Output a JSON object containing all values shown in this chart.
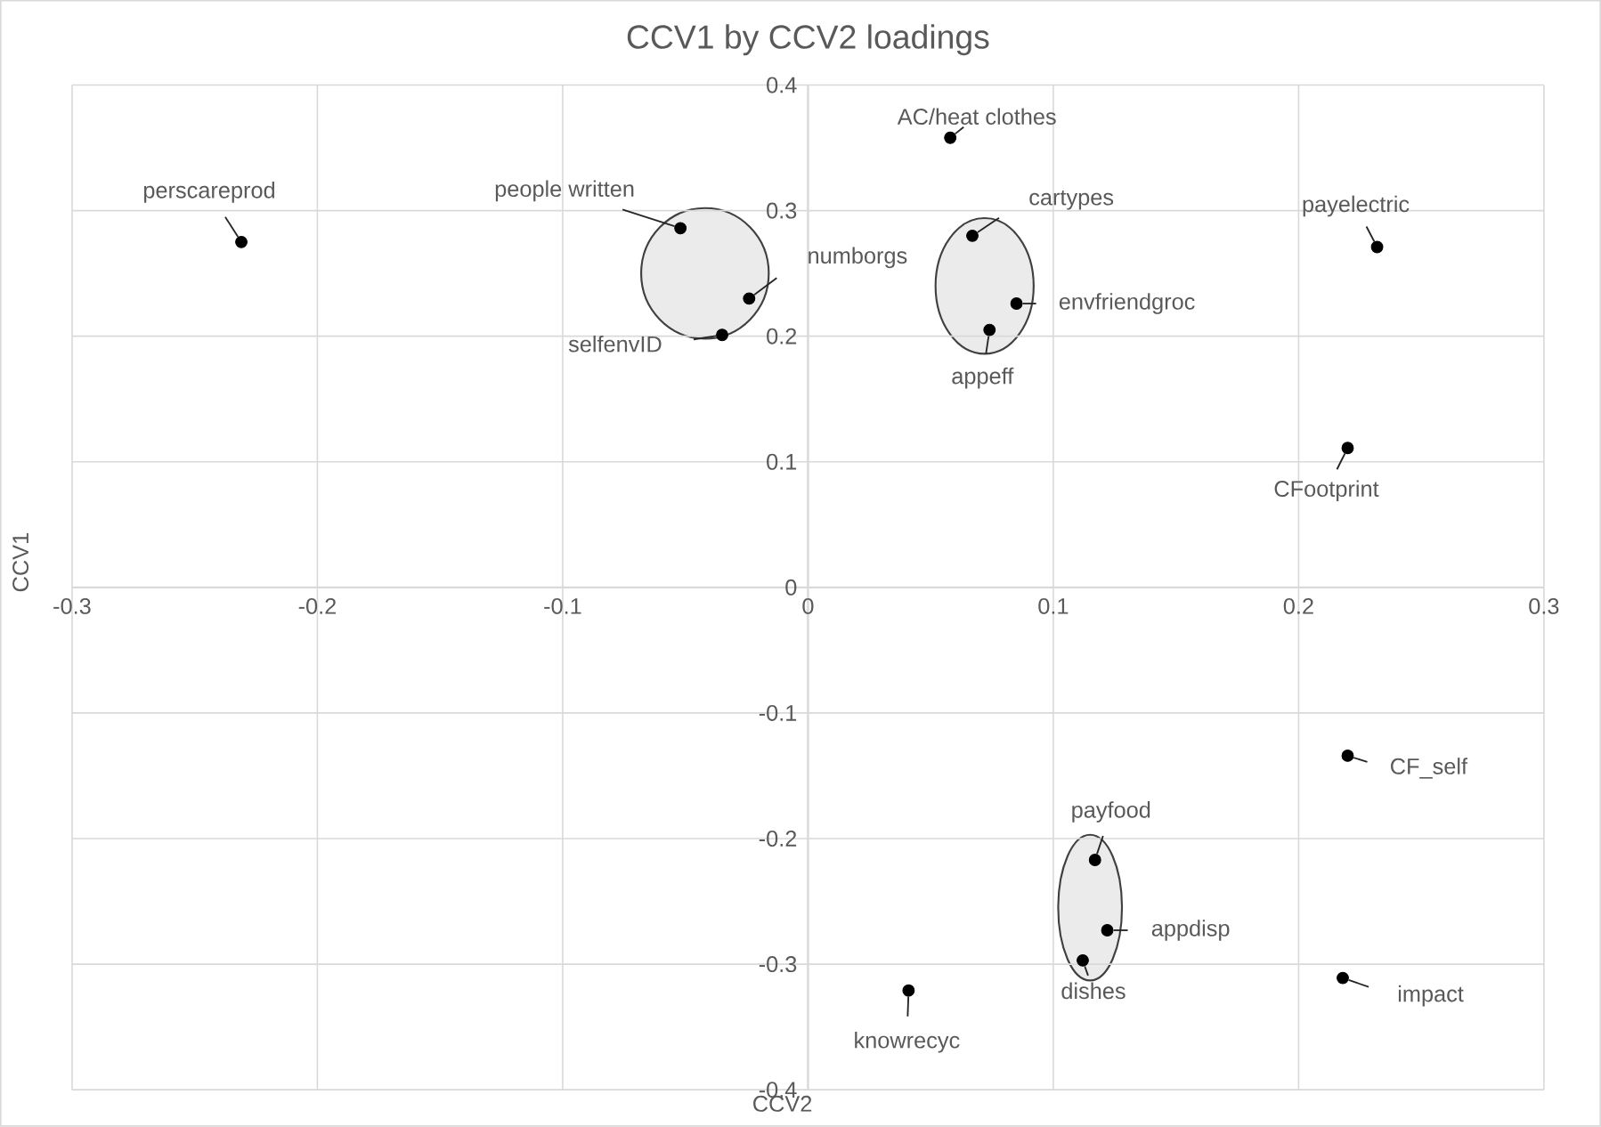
{
  "chart_data": {
    "type": "scatter",
    "title": "CCV1 by CCV2 loadings",
    "xlabel": "CCV2",
    "ylabel": "CCV1",
    "xlim": [
      -0.3,
      0.3
    ],
    "ylim": [
      -0.4,
      0.4
    ],
    "xticks": [
      -0.3,
      -0.2,
      -0.1,
      0,
      0.1,
      0.2,
      0.3
    ],
    "yticks": [
      -0.4,
      -0.3,
      -0.2,
      -0.1,
      0,
      0.1,
      0.2,
      0.3,
      0.4
    ],
    "grid": true,
    "marker": "circle",
    "series": [
      {
        "color": "#000000",
        "x": [
          -0.231,
          -0.052,
          -0.024,
          -0.035,
          0.058,
          0.067,
          0.085,
          0.074,
          0.232,
          0.22,
          0.22,
          0.117,
          0.122,
          0.112,
          0.218,
          0.041
        ],
        "values": [
          0.275,
          0.286,
          0.23,
          0.201,
          0.358,
          0.28,
          0.226,
          0.205,
          0.271,
          0.111,
          -0.134,
          -0.217,
          -0.273,
          -0.297,
          -0.311,
          -0.321
        ]
      }
    ],
    "annotations": [
      {
        "text": "perscareprod",
        "x": -0.231,
        "y": 0.275
      },
      {
        "text": "people written",
        "x": -0.052,
        "y": 0.286
      },
      {
        "text": "numborgs",
        "x": -0.024,
        "y": 0.23
      },
      {
        "text": "selfenvID",
        "x": -0.035,
        "y": 0.201
      },
      {
        "text": "AC/heat clothes",
        "x": 0.058,
        "y": 0.358
      },
      {
        "text": "cartypes",
        "x": 0.067,
        "y": 0.28
      },
      {
        "text": "envfriendgroc",
        "x": 0.085,
        "y": 0.226
      },
      {
        "text": "appeff",
        "x": 0.074,
        "y": 0.205
      },
      {
        "text": "payelectric",
        "x": 0.232,
        "y": 0.271
      },
      {
        "text": "CFootprint",
        "x": 0.22,
        "y": 0.111
      },
      {
        "text": "CF_self",
        "x": 0.22,
        "y": -0.134
      },
      {
        "text": "payfood",
        "x": 0.117,
        "y": -0.217
      },
      {
        "text": "appdisp",
        "x": 0.122,
        "y": -0.273
      },
      {
        "text": "dishes",
        "x": 0.112,
        "y": -0.297
      },
      {
        "text": "impact",
        "x": 0.218,
        "y": -0.311
      },
      {
        "text": "knowrecyc",
        "x": 0.041,
        "y": -0.321
      }
    ]
  }
}
